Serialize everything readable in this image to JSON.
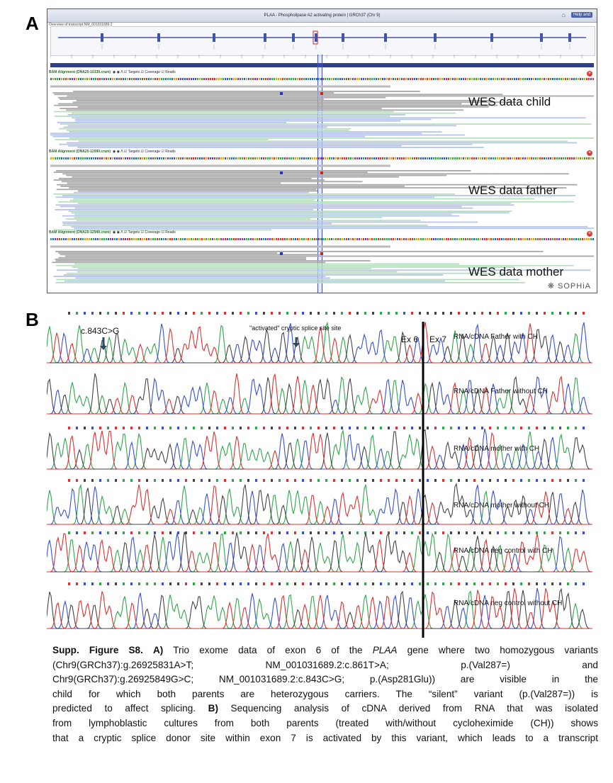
{
  "panels": {
    "a_letter": "A",
    "b_letter": "B"
  },
  "panel_a": {
    "title": "PLAA - Phospholipase A2 activating protein | GRCh37 (Chr 9)",
    "subtitle": "Overview of transcript NM_001031689.2",
    "help_button": "Help and",
    "tracks": [
      {
        "name": "BAM Alignment (DNA20-10339.cram)",
        "controls": [
          "Targets",
          "Coverage",
          "Reads"
        ],
        "label": "WES data child"
      },
      {
        "name": "BAM Alignment (DNA20-12990.cram)",
        "controls": [
          "Targets",
          "Coverage",
          "Reads"
        ],
        "label": "WES data father"
      },
      {
        "name": "BAM Alignment (DNA20-12949.cram)",
        "controls": [
          "Targets",
          "Coverage",
          "Reads"
        ],
        "label": "WES data mother"
      }
    ],
    "logo": "SOPHiA"
  },
  "panel_b": {
    "variant_label": "c.843C>G",
    "cryptic_label": "\"activated\" cryptic splice site site",
    "ex6_label": "Ex 6",
    "ex7_label": "Ex 7",
    "chromatograms": [
      {
        "label": "RNA/cDNA Father with CH"
      },
      {
        "label": "RNA/cDNA Father without CH"
      },
      {
        "label": "RNA/cDNA mother with CH"
      },
      {
        "label": "RNA/cDNA mother without CH"
      },
      {
        "label": "RNA/cDNA neg control with CH"
      },
      {
        "label": "RNA/cDNA neg control without CH"
      }
    ],
    "trace_colors": {
      "A": "#2fa84a",
      "C": "#3850d8",
      "G": "#444444",
      "T": "#e03030"
    }
  },
  "caption": {
    "figure_label": "Supp. Figure S8.",
    "a_marker": "A)",
    "line1_pre": "Trio exome data of exon 6 of the",
    "gene": "PLAA",
    "line1_post": "gene where two homozygous variants",
    "line2": "(Chr9(GRCh37):g.26925831A>T;     NM_001031689.2:c.861T>A;     p.(Val287=)     and",
    "line3": "Chr9(GRCh37):g.26925849G>C; NM_001031689.2:c.843C>G; p.(Asp281Glu)) are visible in the",
    "line4": "child for which both parents are heterozygous carriers. The “silent” variant (p.(Val287=)) is",
    "line5_pre": "predicted to affect splicing.",
    "b_marker": "B)",
    "line5_post": "Sequencing analysis of cDNA derived from RNA that was isolated",
    "line6": "from lymphoblastic cultures from both parents (treated with/without cycloheximide (CH)) shows",
    "line7": "that a cryptic splice donor site within exon 7 is activated by this variant, which leads to a transcript"
  }
}
